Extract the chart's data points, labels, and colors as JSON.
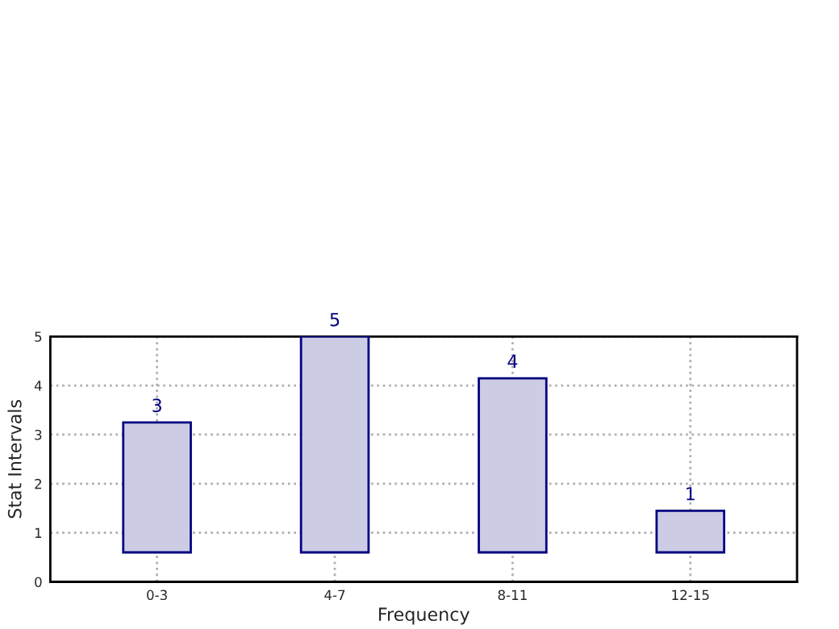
{
  "chart_data": {
    "type": "bar",
    "xlabel": "Frequency",
    "ylabel": "Stat Intervals",
    "categories": [
      "0-3",
      "4-7",
      "8-11",
      "12-15"
    ],
    "base": [
      0.6,
      0.6,
      0.6,
      0.6
    ],
    "values": [
      2.65,
      4.4,
      3.55,
      0.85
    ],
    "value_labels": [
      "3",
      "5",
      "4",
      "1"
    ],
    "color": "#ccccE5",
    "ylim": [
      0,
      5
    ],
    "yticks": [
      0,
      1,
      2,
      3,
      4,
      5
    ],
    "grid": true
  }
}
